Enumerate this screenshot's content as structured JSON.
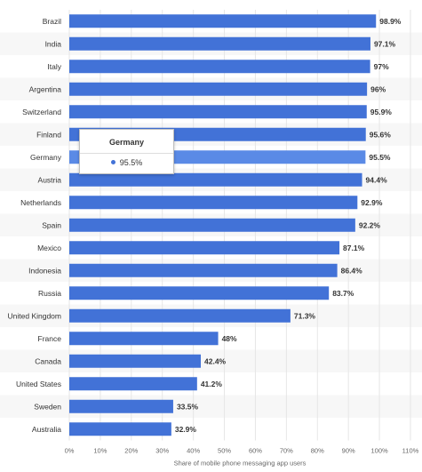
{
  "chart_data": {
    "type": "bar",
    "orientation": "horizontal",
    "categories": [
      "Brazil",
      "India",
      "Italy",
      "Argentina",
      "Switzerland",
      "Finland",
      "Germany",
      "Austria",
      "Netherlands",
      "Spain",
      "Mexico",
      "Indonesia",
      "Russia",
      "United Kingdom",
      "France",
      "Canada",
      "United States",
      "Sweden",
      "Australia"
    ],
    "values": [
      98.9,
      97.1,
      97,
      96,
      95.9,
      95.6,
      95.5,
      94.4,
      92.9,
      92.2,
      87.1,
      86.4,
      83.7,
      71.3,
      48,
      42.4,
      41.2,
      33.5,
      32.9
    ],
    "value_labels": [
      "98.9%",
      "97.1%",
      "97%",
      "96%",
      "95.9%",
      "95.6%",
      "95.5%",
      "94.4%",
      "92.9%",
      "92.2%",
      "87.1%",
      "86.4%",
      "83.7%",
      "71.3%",
      "48%",
      "42.4%",
      "41.2%",
      "33.5%",
      "32.9%"
    ],
    "xlabel": "Share of mobile phone messaging app users",
    "xlim": [
      0,
      110
    ],
    "ticks": [
      "0%",
      "10%",
      "20%",
      "30%",
      "40%",
      "50%",
      "60%",
      "70%",
      "80%",
      "90%",
      "100%",
      "110%"
    ],
    "grid": true,
    "highlighted_category": "Germany",
    "colors": {
      "bar": "#4272d7",
      "bar_highlight": "#5a8ae6",
      "band": "#f7f7f7",
      "grid": "#e6e6e6"
    }
  },
  "tooltip": {
    "title": "Germany",
    "value": "95.5%",
    "dot_color": "#4272d7"
  }
}
